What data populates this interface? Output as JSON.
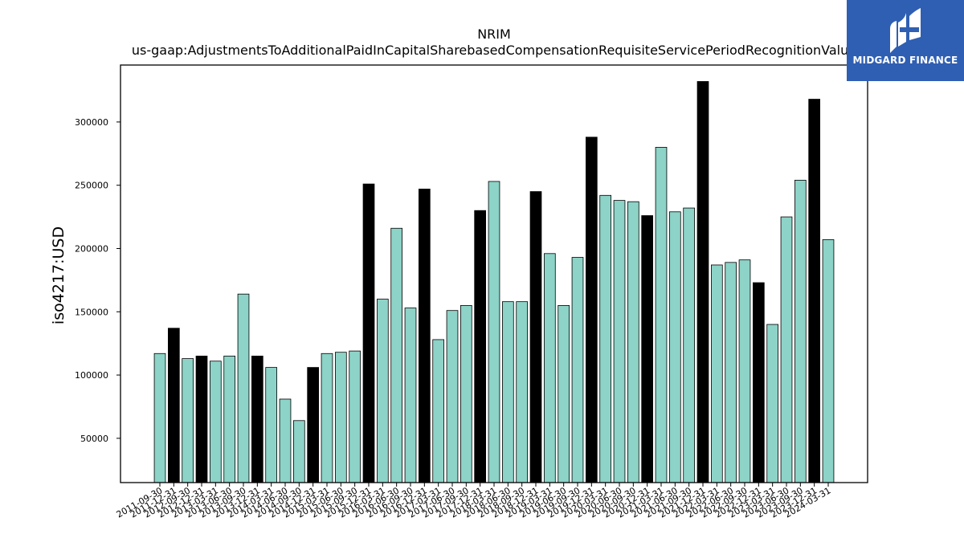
{
  "chart_data": {
    "type": "bar",
    "title": "NRIM",
    "subtitle": "us-gaap:AdjustmentsToAdditionalPaidInCapitalSharebasedCompensationRequisiteServicePeriodRecognitionValue",
    "xlabel": "",
    "ylabel": "iso4217:USD",
    "ylim": [
      15000,
      345000
    ],
    "yticks": [
      50000,
      100000,
      150000,
      200000,
      250000,
      300000
    ],
    "grid": false,
    "colors": {
      "quarter": "#8dd3c7",
      "year_end": "#000000",
      "edge": "#000000"
    },
    "categories": [
      "2011-09-30",
      "2011-12-31",
      "2012-09-30",
      "2012-12-31",
      "2013-03-31",
      "2013-06-30",
      "2013-09-30",
      "2013-12-31",
      "2014-03-31",
      "2014-06-30",
      "2014-09-30",
      "2014-12-31",
      "2015-03-31",
      "2015-06-30",
      "2015-09-30",
      "2015-12-31",
      "2016-03-31",
      "2016-06-30",
      "2016-09-30",
      "2016-12-31",
      "2017-03-31",
      "2017-06-30",
      "2017-09-30",
      "2017-12-31",
      "2018-03-31",
      "2018-06-30",
      "2018-09-30",
      "2018-12-31",
      "2019-03-31",
      "2019-06-30",
      "2019-09-30",
      "2019-12-31",
      "2020-03-31",
      "2020-06-30",
      "2020-09-30",
      "2020-12-31",
      "2021-03-31",
      "2021-06-30",
      "2021-09-30",
      "2021-12-31",
      "2022-03-31",
      "2022-06-30",
      "2022-09-30",
      "2022-12-31",
      "2023-03-31",
      "2023-06-30",
      "2023-09-30",
      "2023-12-31",
      "2024-03-31"
    ],
    "values": [
      117000,
      137000,
      113000,
      115000,
      111000,
      115000,
      164000,
      115000,
      106000,
      81000,
      64000,
      106000,
      117000,
      118000,
      119000,
      251000,
      160000,
      216000,
      153000,
      247000,
      128000,
      151000,
      155000,
      230000,
      253000,
      158000,
      158000,
      245000,
      196000,
      155000,
      193000,
      288000,
      242000,
      238000,
      237000,
      226000,
      280000,
      229000,
      232000,
      332000,
      187000,
      189000,
      191000,
      173000,
      140000,
      225000,
      254000,
      318000,
      207000
    ]
  },
  "logo": {
    "text": "MIDGARD FINANCE"
  }
}
